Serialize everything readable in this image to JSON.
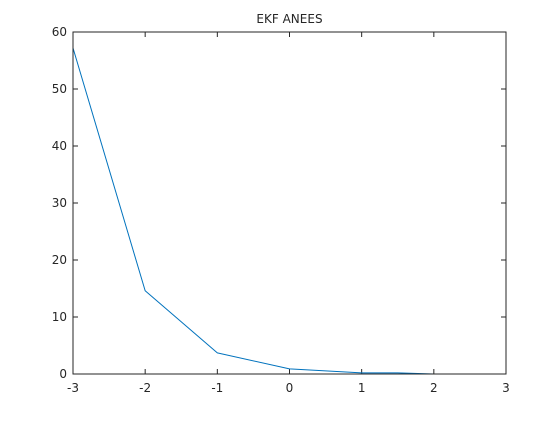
{
  "chart_data": {
    "type": "line",
    "title": "EKF ANEES",
    "xlabel": "",
    "ylabel": "",
    "xlim": [
      -3,
      3
    ],
    "ylim": [
      0,
      60
    ],
    "x_ticks": [
      -3,
      -2,
      -1,
      0,
      1,
      2,
      3
    ],
    "y_ticks": [
      0,
      10,
      20,
      30,
      40,
      50,
      60
    ],
    "x_tick_labels": [
      "-3",
      "-2",
      "-1",
      "0",
      "1",
      "2",
      "3"
    ],
    "y_tick_labels": [
      "0",
      "10",
      "20",
      "30",
      "40",
      "50",
      "60"
    ],
    "grid": false,
    "legend": "none",
    "series": [
      {
        "x": [
          -3,
          -2,
          -1,
          0,
          1,
          1.5,
          2,
          3
        ],
        "y": [
          57.2,
          14.6,
          3.7,
          0.9,
          0.2,
          0.2,
          0.0,
          0.0
        ],
        "color": "#0072bd"
      }
    ]
  }
}
